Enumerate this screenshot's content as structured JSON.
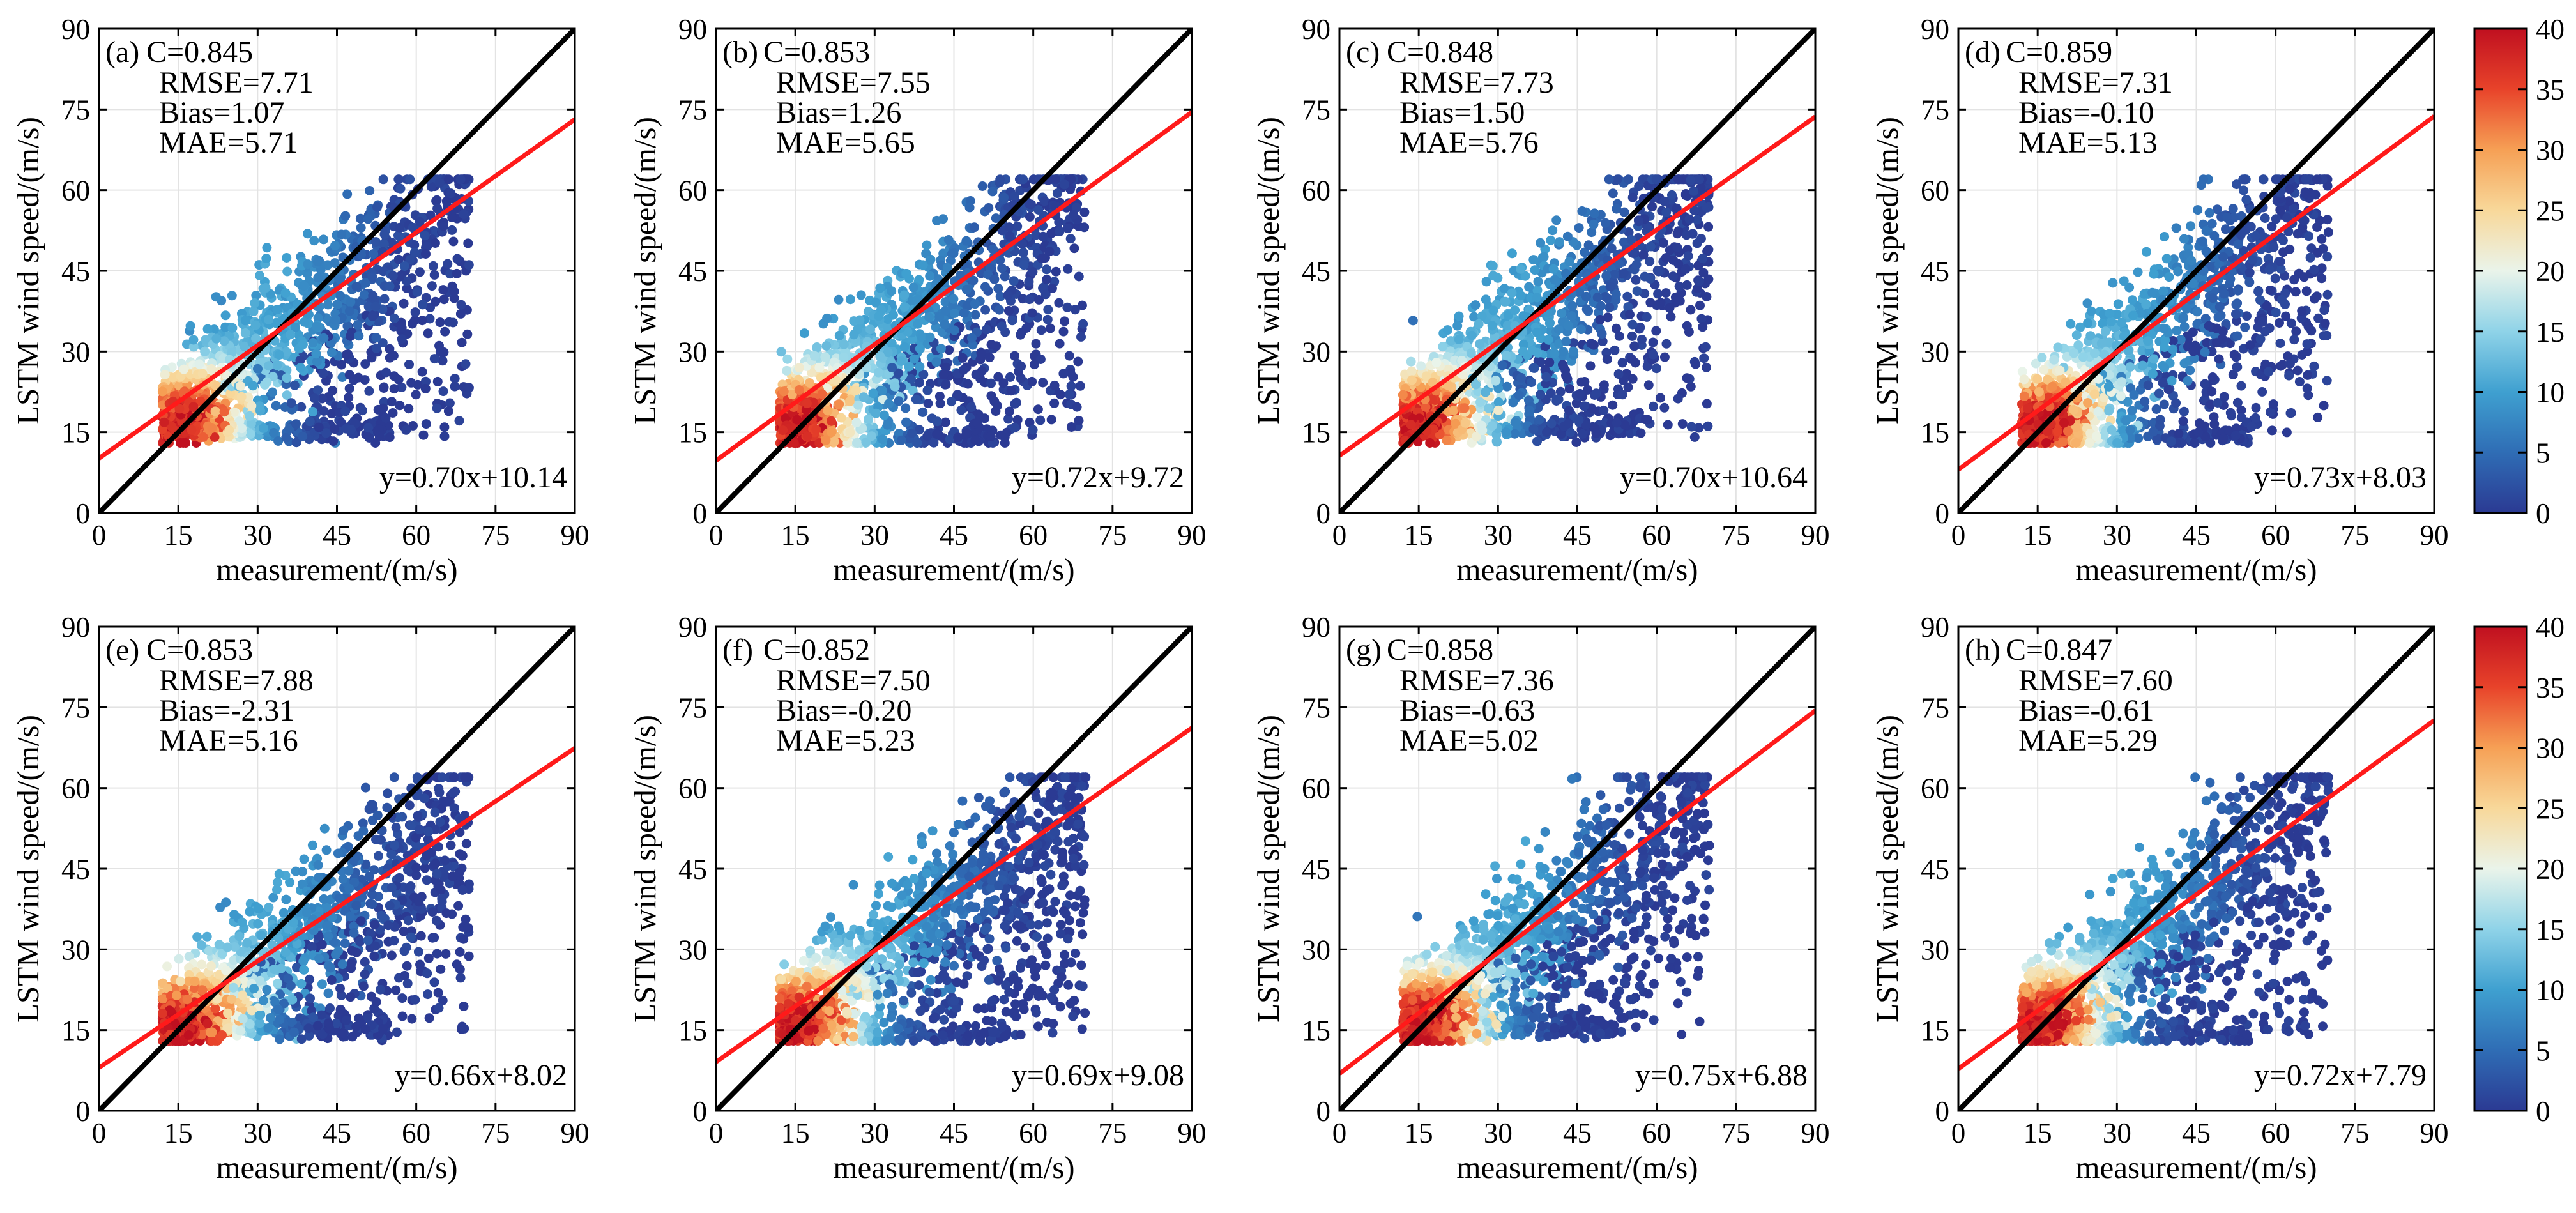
{
  "chart_data": {
    "type": "scatter",
    "description_series": [
      "density scatter",
      "1:1 line",
      "linear fit"
    ],
    "xlabel": "measurement/(m/s)",
    "ylabel": "LSTM wind speed/(m/s)",
    "xlim": [
      0,
      90
    ],
    "ylim": [
      0,
      90
    ],
    "ticks": [
      "0",
      "15",
      "30",
      "45",
      "60",
      "75",
      "90"
    ],
    "colorbar": {
      "range": [
        0,
        40
      ],
      "ticks": [
        "0",
        "5",
        "10",
        "15",
        "20",
        "25",
        "30",
        "35",
        "40"
      ],
      "colormap": [
        "#2b3a93",
        "#2f6db5",
        "#3fa0d0",
        "#8fd3e8",
        "#eaf4ea",
        "#f8d89a",
        "#f6a055",
        "#e8432a",
        "#c01020"
      ]
    },
    "colors": {
      "identity_line": "#000000",
      "fit_line": "#ff1a1a"
    },
    "panels": [
      {
        "label": "(a)",
        "C": "C=0.845",
        "RMSE": "RMSE=7.71",
        "Bias": "Bias=1.07",
        "MAE": "MAE=5.71",
        "equation": "y=0.70x+10.14",
        "slope": 0.7,
        "intercept": 10.14
      },
      {
        "label": "(b)",
        "C": "C=0.853",
        "RMSE": "RMSE=7.55",
        "Bias": "Bias=1.26",
        "MAE": "MAE=5.65",
        "equation": "y=0.72x+9.72",
        "slope": 0.72,
        "intercept": 9.72
      },
      {
        "label": "(c)",
        "C": "C=0.848",
        "RMSE": "RMSE=7.73",
        "Bias": "Bias=1.50",
        "MAE": "MAE=5.76",
        "equation": "y=0.70x+10.64",
        "slope": 0.7,
        "intercept": 10.64
      },
      {
        "label": "(d)",
        "C": "C=0.859",
        "RMSE": "RMSE=7.31",
        "Bias": "Bias=-0.10",
        "MAE": "MAE=5.13",
        "equation": "y=0.73x+8.03",
        "slope": 0.73,
        "intercept": 8.03
      },
      {
        "label": "(e)",
        "C": "C=0.853",
        "RMSE": "RMSE=7.88",
        "Bias": "Bias=-2.31",
        "MAE": "MAE=5.16",
        "equation": "y=0.66x+8.02",
        "slope": 0.66,
        "intercept": 8.02
      },
      {
        "label": "(f)",
        "C": "C=0.852",
        "RMSE": "RMSE=7.50",
        "Bias": "Bias=-0.20",
        "MAE": "MAE=5.23",
        "equation": "y=0.69x+9.08",
        "slope": 0.69,
        "intercept": 9.08
      },
      {
        "label": "(g)",
        "C": "C=0.858",
        "RMSE": "RMSE=7.36",
        "Bias": "Bias=-0.63",
        "MAE": "MAE=5.02",
        "equation": "y=0.75x+6.88",
        "slope": 0.75,
        "intercept": 6.88
      },
      {
        "label": "(h)",
        "C": "C=0.847",
        "RMSE": "RMSE=7.60",
        "Bias": "Bias=-0.61",
        "MAE": "MAE=5.29",
        "equation": "y=0.72x+7.79",
        "slope": 0.72,
        "intercept": 7.79
      }
    ]
  }
}
